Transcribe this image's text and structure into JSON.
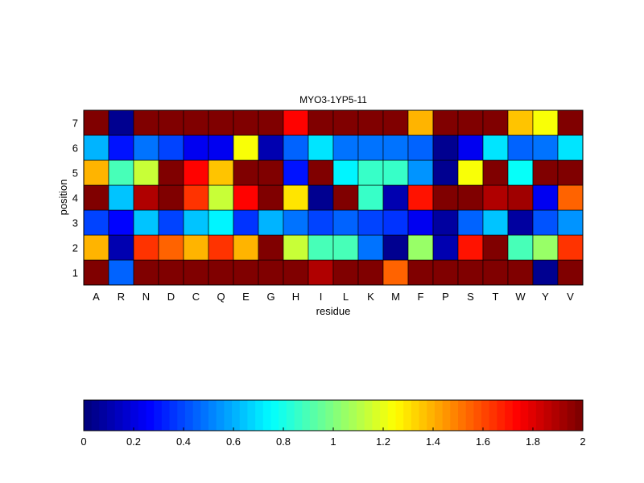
{
  "chart_data": {
    "type": "heatmap",
    "title": "MYO3-1YP5-11",
    "xlabel": "residue",
    "ylabel": "position",
    "x_categories": [
      "A",
      "R",
      "N",
      "D",
      "C",
      "Q",
      "E",
      "G",
      "H",
      "I",
      "L",
      "K",
      "M",
      "F",
      "P",
      "S",
      "T",
      "W",
      "Y",
      "V"
    ],
    "y_categories": [
      "1",
      "2",
      "3",
      "4",
      "5",
      "6",
      "7"
    ],
    "values": [
      [
        2,
        0.45,
        2,
        2,
        2,
        2,
        2,
        2,
        2,
        1.9,
        2,
        2,
        1.55,
        2,
        2,
        2,
        2,
        2,
        0.05,
        2
      ],
      [
        1.4,
        0.1,
        1.65,
        1.55,
        1.4,
        1.65,
        1.4,
        2,
        1.15,
        0.9,
        0.9,
        0.5,
        0.05,
        1.05,
        0.1,
        1.7,
        2,
        0.88,
        1.05,
        1.65
      ],
      [
        0.4,
        0.28,
        0.65,
        0.4,
        0.65,
        0.75,
        0.35,
        0.6,
        0.5,
        0.38,
        0.45,
        0.38,
        0.35,
        0.25,
        0.07,
        0.45,
        0.65,
        0.07,
        0.42,
        0.55
      ],
      [
        2,
        0.65,
        1.9,
        2,
        1.65,
        1.15,
        1.75,
        2,
        1.3,
        0.05,
        2,
        0.85,
        0.12,
        1.7,
        2,
        2,
        1.88,
        1.92,
        0.25,
        1.55
      ],
      [
        1.4,
        0.9,
        1.15,
        2,
        1.75,
        1.35,
        2,
        2,
        0.3,
        2,
        0.75,
        0.85,
        0.85,
        0.55,
        0.05,
        1.25,
        2,
        0.78,
        2,
        2
      ],
      [
        0.6,
        0.3,
        0.5,
        0.4,
        0.25,
        0.25,
        1.25,
        0.1,
        0.45,
        0.7,
        0.5,
        0.5,
        0.5,
        0.45,
        0.05,
        0.22,
        0.7,
        0.45,
        0.5,
        0.7
      ],
      [
        2,
        0.05,
        2,
        2,
        2,
        2,
        2,
        2,
        1.75,
        2,
        2,
        2,
        2,
        1.4,
        2,
        2,
        2,
        1.35,
        1.25,
        2
      ]
    ],
    "colormap": "jet",
    "clim": [
      0,
      2
    ],
    "colorbar": {
      "location": "bottom",
      "ticks": [
        "0",
        "0.2",
        "0.4",
        "0.6",
        "0.8",
        "1",
        "1.2",
        "1.4",
        "1.6",
        "1.8",
        "2"
      ]
    }
  }
}
